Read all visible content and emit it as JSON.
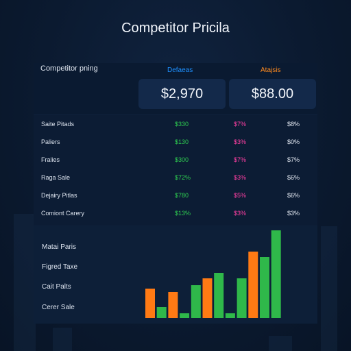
{
  "title": "Competitor Pricila",
  "panel": {
    "label": "Competitor pning",
    "columns": [
      {
        "label": "Defaeas",
        "color": "#1e90ff",
        "price": "$2,970"
      },
      {
        "label": "Atajsis",
        "color": "#ff8a1e",
        "price": "$88.00"
      }
    ],
    "rows": [
      {
        "name": "Saite Pitads",
        "v1": "$330",
        "v2": "$7%",
        "v3": "$8%"
      },
      {
        "name": "Paliers",
        "v1": "$130",
        "v2": "$3%",
        "v3": "$0%"
      },
      {
        "name": "Fralies",
        "v1": "$300",
        "v2": "$7%",
        "v3": "$7%"
      },
      {
        "name": "Raga Sale",
        "v1": "$72%",
        "v2": "$3%",
        "v3": "$6%"
      },
      {
        "name": "Dejairy Pitlas",
        "v1": "$780",
        "v2": "$5%",
        "v3": "$6%"
      },
      {
        "name": "Comiont Carery",
        "v1": "$13%",
        "v2": "$3%",
        "v3": "$3%"
      }
    ],
    "chart_labels": [
      "Matai Paris",
      "Figred Taxe",
      "Cait Palts",
      "Cerer Sale"
    ]
  },
  "chart_data": {
    "type": "bar",
    "colors": {
      "orange": "#ff7a14",
      "green": "#2fb84a"
    },
    "bars": [
      {
        "color": "orange",
        "value": 43
      },
      {
        "color": "green",
        "value": 16
      },
      {
        "color": "orange",
        "value": 38
      },
      {
        "color": "green",
        "value": 7
      },
      {
        "color": "green",
        "value": 48
      },
      {
        "color": "orange",
        "value": 58
      },
      {
        "color": "green",
        "value": 66
      },
      {
        "color": "green",
        "value": 7
      },
      {
        "color": "green",
        "value": 58
      },
      {
        "color": "orange",
        "value": 97
      },
      {
        "color": "green",
        "value": 89
      },
      {
        "color": "green",
        "value": 128
      }
    ]
  }
}
